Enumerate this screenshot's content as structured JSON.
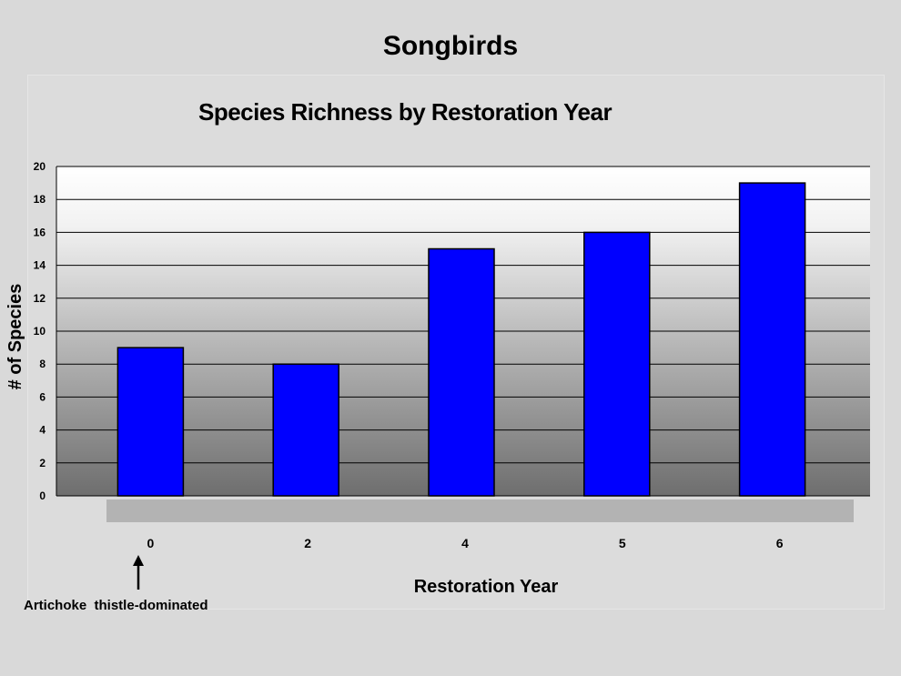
{
  "page": {
    "title": "Songbirds"
  },
  "chart_data": {
    "type": "bar",
    "title": "Species Richness by Restoration Year",
    "xlabel": "Restoration Year",
    "ylabel": "# of Species",
    "categories": [
      "0",
      "2",
      "4",
      "5",
      "6"
    ],
    "values": [
      9,
      8,
      15,
      16,
      19
    ],
    "ylim": [
      0,
      20
    ],
    "yticks": [
      "0",
      "2",
      "4",
      "6",
      "8",
      "10",
      "12",
      "14",
      "16",
      "18",
      "20"
    ],
    "grid": true,
    "legend": "none",
    "bar_color": "#0000ff",
    "annotation": {
      "text": "Artichoke  thistle-dominated",
      "target_category": "0"
    }
  }
}
